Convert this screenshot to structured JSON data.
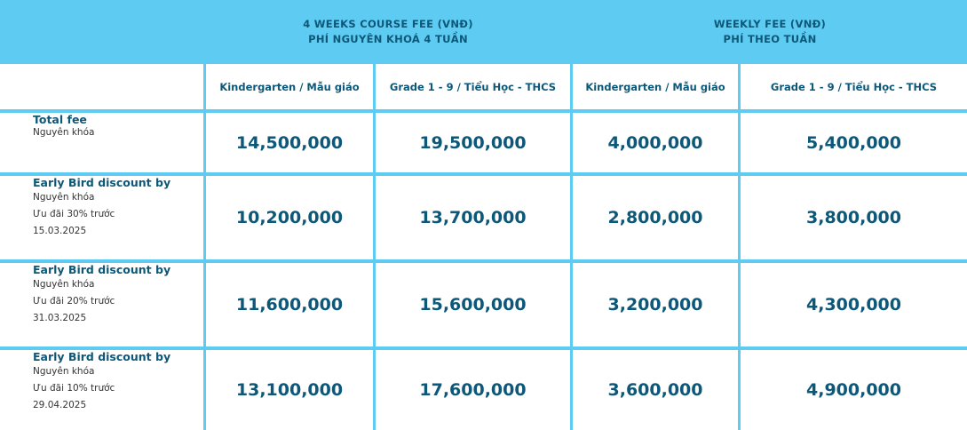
{
  "header": {
    "course_fee": {
      "line1": "4 WEEKS COURSE FEE (VNĐ)",
      "line2": "PHÍ NGUYÊN KHOÁ 4 TUẦN"
    },
    "weekly_fee": {
      "line1": "WEEKLY FEE (VNĐ)",
      "line2": "PHÍ THEO TUẦN"
    }
  },
  "subheaders": [
    "Kindergarten / Mẫu giáo",
    "Grade 1 - 9 / Tiểu Học - THCS",
    "Kindergarten / Mẫu giáo",
    "Grade 1 - 9 / Tiểu Học - THCS"
  ],
  "rows": [
    {
      "title": "Total fee",
      "lines": [
        "Nguyên khóa"
      ],
      "values": [
        "14,500,000",
        "19,500,000",
        "4,000,000",
        "5,400,000"
      ]
    },
    {
      "title": "Early Bird discount by",
      "lines": [
        "Nguyên khóa",
        "Ưu đãi 30% trước",
        "15.03.2025"
      ],
      "values": [
        "10,200,000",
        "13,700,000",
        "2,800,000",
        "3,800,000"
      ]
    },
    {
      "title": "Early Bird discount by",
      "lines": [
        "Nguyên khóa",
        "Ưu đãi 20% trước",
        "31.03.2025"
      ],
      "values": [
        "11,600,000",
        "15,600,000",
        "3,200,000",
        "4,300,000"
      ]
    },
    {
      "title": "Early Bird discount by",
      "lines": [
        "Nguyên khóa",
        "Ưu đãi 10% trước",
        "29.04.2025"
      ],
      "values": [
        "13,100,000",
        "17,600,000",
        "3,600,000",
        "4,900,000"
      ]
    }
  ],
  "colors": {
    "accent": "#5ecbf2",
    "text": "#0d5878"
  }
}
